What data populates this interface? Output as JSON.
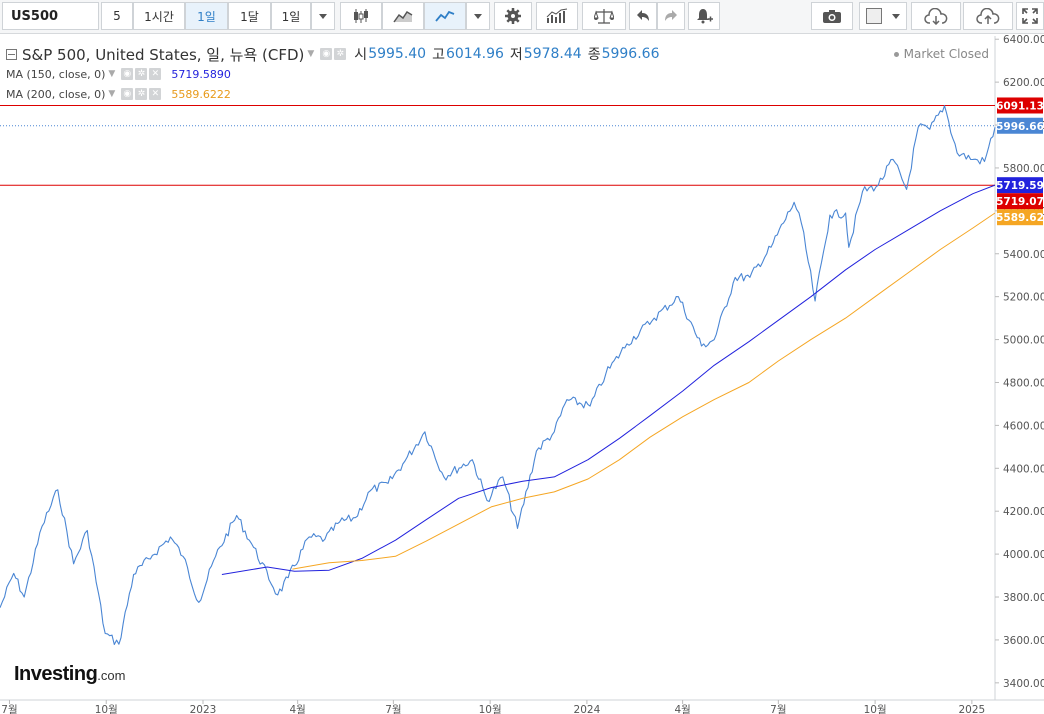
{
  "toolbar": {
    "symbol": "US500",
    "items": [
      {
        "label": "5"
      },
      {
        "label": "1시간"
      },
      {
        "label": "1일",
        "active": true
      },
      {
        "label": "1달"
      },
      {
        "label": "1일"
      }
    ],
    "icons": [
      "dropdown-icon",
      "candlestick-icon",
      "area-chart-icon",
      "line-chart-icon",
      "dropdown-icon",
      "settings-gear-icon",
      "indicators-icon",
      "scale-balance-icon",
      "undo-icon",
      "redo-icon",
      "alert-bell-icon",
      "camera-icon",
      "color-swatch-icon",
      "dropdown-icon",
      "cloud-download-icon",
      "cloud-upload-icon",
      "fullscreen-icon"
    ]
  },
  "legend": {
    "title": "S&P 500, United States, 일, 뉴욕 (CFD)",
    "open_label": "시",
    "open": "5995.40",
    "high_label": "고",
    "high": "6014.96",
    "low_label": "저",
    "low": "5978.44",
    "close_label": "종",
    "close": "5996.66",
    "ma150_label": "MA (150, close, 0)",
    "ma150_value": "5719.5890",
    "ma200_label": "MA (200, close, 0)",
    "ma200_value": "5589.6222"
  },
  "market_status": "Market Closed",
  "logo": {
    "main": "Investing",
    "tld": ".com"
  },
  "colors": {
    "price_line": "#4a86d4",
    "ma150": "#2222dd",
    "ma200": "#f5a623",
    "horizontal_line": "#dd0000",
    "close_badge": "#4a86d4"
  },
  "chart_data": {
    "type": "line",
    "title": "S&P 500, United States, 일, 뉴욕 (CFD)",
    "x_ticks": [
      "7월",
      "10월",
      "2023",
      "4월",
      "7월",
      "10월",
      "2024",
      "4월",
      "7월",
      "10월",
      "2025"
    ],
    "y_ticks": [
      3400,
      3600,
      3800,
      4000,
      4200,
      4400,
      4600,
      4800,
      5000,
      5200,
      5400,
      5600,
      5800,
      6000,
      6200,
      6400
    ],
    "ylim": [
      3320,
      6415
    ],
    "xlim": [
      "2022-06-22",
      "2025-01-23"
    ],
    "price_labels": [
      {
        "value": "6091.13",
        "color": "#dd0000",
        "y": 6091.13
      },
      {
        "value": "5996.66",
        "color": "#4a86d4",
        "y": 5996.66
      },
      {
        "value": "5719.59",
        "color": "#2222dd",
        "y": 5719.59
      },
      {
        "value": "5719.07",
        "color": "#dd0000",
        "y": 5719.07
      },
      {
        "value": "5589.62",
        "color": "#f5a623",
        "y": 5589.62
      }
    ],
    "hlines": [
      6091.13,
      5719.07
    ],
    "close_dotted": 5996.66,
    "series": [
      {
        "name": "S&P 500",
        "x": [
          "2022-06-22",
          "2022-07-05",
          "2022-07-15",
          "2022-08-01",
          "2022-08-16",
          "2022-08-31",
          "2022-09-13",
          "2022-09-30",
          "2022-10-13",
          "2022-10-27",
          "2022-11-14",
          "2022-12-01",
          "2022-12-13",
          "2022-12-28",
          "2023-01-13",
          "2023-02-02",
          "2023-02-16",
          "2023-03-13",
          "2023-03-23",
          "2023-04-12",
          "2023-04-27",
          "2023-05-11",
          "2023-05-26",
          "2023-06-09",
          "2023-06-26",
          "2023-07-10",
          "2023-07-31",
          "2023-08-18",
          "2023-09-14",
          "2023-09-28",
          "2023-10-13",
          "2023-10-27",
          "2023-11-14",
          "2023-12-01",
          "2023-12-13",
          "2024-01-04",
          "2024-01-19",
          "2024-02-08",
          "2024-03-05",
          "2024-03-28",
          "2024-04-19",
          "2024-05-01",
          "2024-05-21",
          "2024-06-04",
          "2024-06-24",
          "2024-07-16",
          "2024-07-23",
          "2024-08-05",
          "2024-08-19",
          "2024-09-03",
          "2024-09-06",
          "2024-09-19",
          "2024-10-04",
          "2024-10-18",
          "2024-10-31",
          "2024-11-11",
          "2024-11-22",
          "2024-12-06",
          "2024-12-18",
          "2025-01-02",
          "2025-01-13",
          "2025-01-23"
        ],
        "values": [
          3750,
          3910,
          3800,
          4130,
          4300,
          3955,
          4110,
          3630,
          3580,
          3905,
          3995,
          4080,
          3990,
          3775,
          3990,
          4180,
          4050,
          3810,
          3890,
          4080,
          4070,
          4150,
          4170,
          4295,
          4330,
          4420,
          4570,
          4360,
          4440,
          4250,
          4360,
          4120,
          4480,
          4570,
          4720,
          4690,
          4840,
          4980,
          5100,
          5200,
          4970,
          5000,
          5290,
          5290,
          5430,
          5640,
          5540,
          5180,
          5580,
          5590,
          5430,
          5690,
          5720,
          5840,
          5700,
          5990,
          5980,
          6090,
          5870,
          5840,
          5830,
          5990
        ]
      },
      {
        "name": "MA (150, close, 0)",
        "x": [
          "2023-01-19",
          "2023-03-03",
          "2023-03-29",
          "2023-05-01",
          "2023-06-01",
          "2023-07-03",
          "2023-08-01",
          "2023-09-01",
          "2023-10-02",
          "2023-11-01",
          "2023-12-01",
          "2024-01-02",
          "2024-02-01",
          "2024-03-01",
          "2024-04-01",
          "2024-05-01",
          "2024-06-03",
          "2024-07-01",
          "2024-08-01",
          "2024-09-03",
          "2024-10-01",
          "2024-11-01",
          "2024-12-02",
          "2025-01-02",
          "2025-01-23"
        ],
        "values": [
          3905,
          3940,
          3920,
          3925,
          3980,
          4065,
          4160,
          4260,
          4310,
          4340,
          4360,
          4440,
          4540,
          4645,
          4760,
          4880,
          4990,
          5090,
          5200,
          5325,
          5420,
          5510,
          5600,
          5680,
          5720
        ]
      },
      {
        "name": "MA (200, close, 0)",
        "x": [
          "2023-03-27",
          "2023-05-01",
          "2023-06-01",
          "2023-07-03",
          "2023-08-01",
          "2023-09-01",
          "2023-10-02",
          "2023-11-01",
          "2023-12-01",
          "2024-01-02",
          "2024-02-01",
          "2024-03-01",
          "2024-04-01",
          "2024-05-01",
          "2024-06-03",
          "2024-07-01",
          "2024-08-01",
          "2024-09-03",
          "2024-10-01",
          "2024-11-01",
          "2024-12-02",
          "2025-01-02",
          "2025-01-23"
        ],
        "values": [
          3930,
          3960,
          3970,
          3990,
          4060,
          4140,
          4220,
          4260,
          4290,
          4350,
          4440,
          4545,
          4640,
          4720,
          4800,
          4900,
          5000,
          5100,
          5200,
          5310,
          5420,
          5520,
          5590
        ]
      }
    ]
  }
}
